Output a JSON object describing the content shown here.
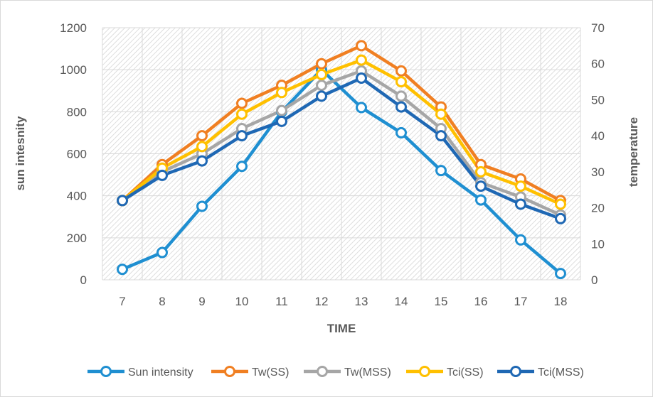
{
  "chart_data": {
    "type": "line",
    "title": "",
    "xlabel": "TIME",
    "ylabel": "sun intesnity",
    "y2label": "temperature",
    "categories": [
      "7",
      "8",
      "9",
      "10",
      "11",
      "12",
      "13",
      "14",
      "15",
      "16",
      "17",
      "18"
    ],
    "ylim": [
      0,
      1200
    ],
    "y2lim": [
      0,
      70
    ],
    "yticks": [
      "0",
      "200",
      "400",
      "600",
      "800",
      "1000",
      "1200"
    ],
    "y2ticks": [
      "0",
      "10",
      "20",
      "30",
      "40",
      "50",
      "60",
      "70"
    ],
    "grid": true,
    "legend_position": "bottom",
    "series": [
      {
        "name": "Sun intensity",
        "axis": "left",
        "color": "#1f8fd1",
        "values": [
          50,
          130,
          350,
          540,
          800,
          1000,
          820,
          700,
          520,
          380,
          190,
          30
        ]
      },
      {
        "name": "Tw(SS)",
        "axis": "right",
        "color": "#f07f22",
        "values": [
          22,
          32,
          40,
          49,
          54,
          60,
          65,
          58,
          48,
          32,
          28,
          22
        ]
      },
      {
        "name": "Tw(MSS)",
        "axis": "right",
        "color": "#a6a6a6",
        "values": [
          22,
          30,
          35,
          42,
          47,
          54,
          58,
          51,
          42,
          27,
          23,
          18
        ]
      },
      {
        "name": "Tci(SS)",
        "axis": "right",
        "color": "#ffc000",
        "values": [
          22,
          31,
          37,
          46,
          52,
          57,
          61,
          55,
          46,
          30,
          26,
          21
        ]
      },
      {
        "name": "Tci(MSS)",
        "axis": "right",
        "color": "#1f68b4",
        "values": [
          22,
          29,
          33,
          40,
          44,
          51,
          56,
          48,
          40,
          26,
          21,
          17
        ]
      }
    ]
  }
}
